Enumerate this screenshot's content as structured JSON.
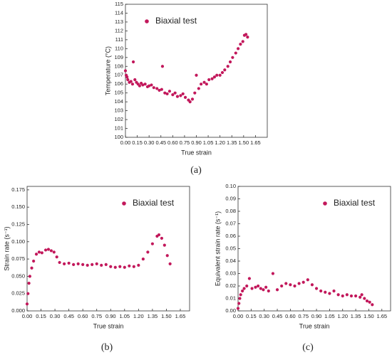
{
  "chart_data": [
    {
      "type": "scatter",
      "caption": "(a)",
      "xlabel": "True strain",
      "ylabel": "Temperature (°C)",
      "series": [
        {
          "name": "Biaxial test",
          "color": "#c2185b",
          "x": [
            0,
            0.01,
            0.02,
            0.03,
            0.05,
            0.07,
            0.09,
            0.1,
            0.12,
            0.14,
            0.16,
            0.18,
            0.2,
            0.22,
            0.25,
            0.28,
            0.3,
            0.33,
            0.36,
            0.4,
            0.43,
            0.46,
            0.47,
            0.5,
            0.53,
            0.56,
            0.6,
            0.63,
            0.66,
            0.7,
            0.73,
            0.76,
            0.8,
            0.82,
            0.85,
            0.88,
            0.9,
            0.93,
            0.96,
            1.0,
            1.03,
            1.06,
            1.1,
            1.13,
            1.16,
            1.2,
            1.23,
            1.26,
            1.3,
            1.33,
            1.36,
            1.4,
            1.43,
            1.46,
            1.49,
            1.51,
            1.53,
            1.55
          ],
          "values": [
            107.5,
            107,
            106.8,
            106.5,
            106.2,
            106.3,
            106,
            108.5,
            106.5,
            106.2,
            106,
            105.8,
            106.1,
            105.9,
            106,
            105.7,
            105.8,
            105.9,
            105.6,
            105.5,
            105.3,
            105.4,
            108,
            105,
            104.9,
            105.2,
            104.8,
            105,
            104.6,
            104.7,
            104.9,
            104.5,
            104.2,
            104,
            104.3,
            105,
            107,
            105.5,
            106,
            106.2,
            106,
            106.5,
            106.6,
            106.8,
            107,
            107,
            107.3,
            107.6,
            108,
            108.5,
            109,
            109.5,
            110,
            110.5,
            110.8,
            111.5,
            111.6,
            111.3
          ]
        }
      ],
      "xlim": [
        0,
        1.8
      ],
      "xticks": [
        {
          "value": 0,
          "label": "0.00"
        },
        0.15,
        {
          "value": 0.3,
          "label": "0.30"
        },
        0.45,
        {
          "value": 0.6,
          "label": "0.60"
        },
        0.75,
        {
          "value": 0.9,
          "label": "0.90"
        },
        1.05,
        {
          "value": 1.2,
          "label": "1.20"
        },
        1.35,
        {
          "value": 1.5,
          "label": "1.50"
        },
        1.65
      ],
      "ylim": [
        100,
        115
      ],
      "yticks": [
        100,
        101,
        102,
        103,
        104,
        105,
        106,
        107,
        108,
        109,
        110,
        111,
        112,
        113,
        114,
        115
      ],
      "legend": "top-left"
    },
    {
      "type": "scatter",
      "caption": "(b)",
      "xlabel": "True strain",
      "ylabel": "Strain rate (s⁻¹)",
      "series": [
        {
          "name": "Biaxial test",
          "color": "#c2185b",
          "x": [
            0,
            0.01,
            0.02,
            0.03,
            0.05,
            0.07,
            0.1,
            0.13,
            0.16,
            0.2,
            0.23,
            0.26,
            0.29,
            0.32,
            0.35,
            0.4,
            0.45,
            0.5,
            0.55,
            0.6,
            0.65,
            0.7,
            0.75,
            0.8,
            0.85,
            0.9,
            0.95,
            1.0,
            1.05,
            1.1,
            1.15,
            1.2,
            1.25,
            1.3,
            1.35,
            1.4,
            1.42,
            1.45,
            1.48,
            1.51,
            1.54
          ],
          "values": [
            0.01,
            0.025,
            0.04,
            0.05,
            0.062,
            0.072,
            0.082,
            0.085,
            0.084,
            0.088,
            0.089,
            0.087,
            0.085,
            0.078,
            0.07,
            0.068,
            0.069,
            0.067,
            0.068,
            0.067,
            0.066,
            0.067,
            0.068,
            0.066,
            0.067,
            0.064,
            0.063,
            0.064,
            0.063,
            0.065,
            0.064,
            0.066,
            0.075,
            0.085,
            0.097,
            0.108,
            0.11,
            0.105,
            0.095,
            0.08,
            0.068
          ]
        }
      ],
      "xlim": [
        0,
        1.75
      ],
      "xticks": [
        {
          "value": 0,
          "label": "0.00"
        },
        0.15,
        {
          "value": 0.3,
          "label": "0.30"
        },
        0.45,
        {
          "value": 0.6,
          "label": "0.60"
        },
        0.75,
        {
          "value": 0.9,
          "label": "0.90"
        },
        1.05,
        {
          "value": 1.2,
          "label": "1.20"
        },
        1.35,
        {
          "value": 1.5,
          "label": "1.50"
        },
        1.65
      ],
      "ylim": [
        0,
        0.18
      ],
      "yticks": [
        {
          "value": 0,
          "label": "0.000"
        },
        0.025,
        {
          "value": 0.05,
          "label": "0.050"
        },
        0.075,
        {
          "value": 0.1,
          "label": "0.100"
        },
        0.125,
        {
          "value": 0.15,
          "label": "0.150"
        },
        0.175
      ],
      "legend": "top-right"
    },
    {
      "type": "scatter",
      "caption": "(c)",
      "xlabel": "True strain",
      "ylabel": "Equivalent strain rate (s⁻¹)",
      "series": [
        {
          "name": "Biaxial test",
          "color": "#c2185b",
          "x": [
            0,
            0.01,
            0.02,
            0.03,
            0.05,
            0.07,
            0.1,
            0.13,
            0.16,
            0.2,
            0.23,
            0.26,
            0.29,
            0.32,
            0.35,
            0.4,
            0.45,
            0.5,
            0.55,
            0.6,
            0.65,
            0.7,
            0.75,
            0.8,
            0.85,
            0.9,
            0.95,
            1.0,
            1.05,
            1.1,
            1.15,
            1.2,
            1.25,
            1.3,
            1.35,
            1.4,
            1.42,
            1.45,
            1.48,
            1.51,
            1.54
          ],
          "values": [
            0.002,
            0.006,
            0.01,
            0.013,
            0.016,
            0.018,
            0.02,
            0.026,
            0.018,
            0.019,
            0.02,
            0.018,
            0.017,
            0.019,
            0.016,
            0.03,
            0.017,
            0.02,
            0.022,
            0.021,
            0.02,
            0.022,
            0.023,
            0.025,
            0.021,
            0.018,
            0.016,
            0.015,
            0.014,
            0.016,
            0.013,
            0.012,
            0.013,
            0.012,
            0.012,
            0.011,
            0.013,
            0.01,
            0.008,
            0.007,
            0.005
          ]
        }
      ],
      "xlim": [
        0,
        1.75
      ],
      "xticks": [
        {
          "value": 0,
          "label": "0.00"
        },
        0.15,
        {
          "value": 0.3,
          "label": "0.30"
        },
        0.45,
        {
          "value": 0.6,
          "label": "0.60"
        },
        0.75,
        {
          "value": 0.9,
          "label": "0.90"
        },
        1.05,
        {
          "value": 1.2,
          "label": "1.20"
        },
        1.35,
        {
          "value": 1.5,
          "label": "1.50"
        },
        1.65
      ],
      "ylim": [
        0,
        0.1
      ],
      "yticks": [
        {
          "value": 0,
          "label": "0.00"
        },
        {
          "value": 0.01,
          "label": "0.01"
        },
        {
          "value": 0.02,
          "label": "0.02"
        },
        {
          "value": 0.03,
          "label": "0.03"
        },
        {
          "value": 0.04,
          "label": "0.04"
        },
        {
          "value": 0.05,
          "label": "0.05"
        },
        {
          "value": 0.06,
          "label": "0.06"
        },
        {
          "value": 0.07,
          "label": "0.07"
        },
        {
          "value": 0.08,
          "label": "0.08"
        },
        {
          "value": 0.09,
          "label": "0.09"
        },
        {
          "value": 0.1,
          "label": "0.10"
        }
      ],
      "legend": "top-right"
    }
  ]
}
